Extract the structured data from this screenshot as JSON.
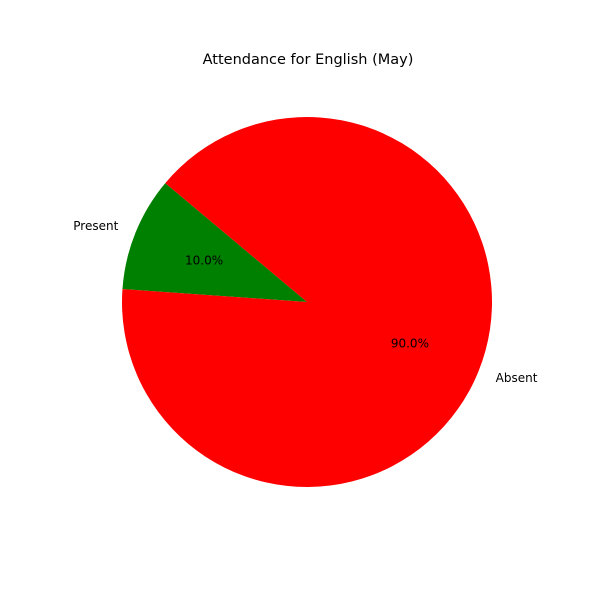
{
  "chart_data": {
    "type": "pie",
    "title": "Attendance for English (May)",
    "slices": [
      {
        "label": "Present",
        "value": 10.0,
        "pct_label": "10.0%",
        "color": "#008000"
      },
      {
        "label": "Absent",
        "value": 90.0,
        "pct_label": "90.0%",
        "color": "#ff0000"
      }
    ],
    "start_angle_deg": 140,
    "counterclockwise": true,
    "legend": "none"
  }
}
